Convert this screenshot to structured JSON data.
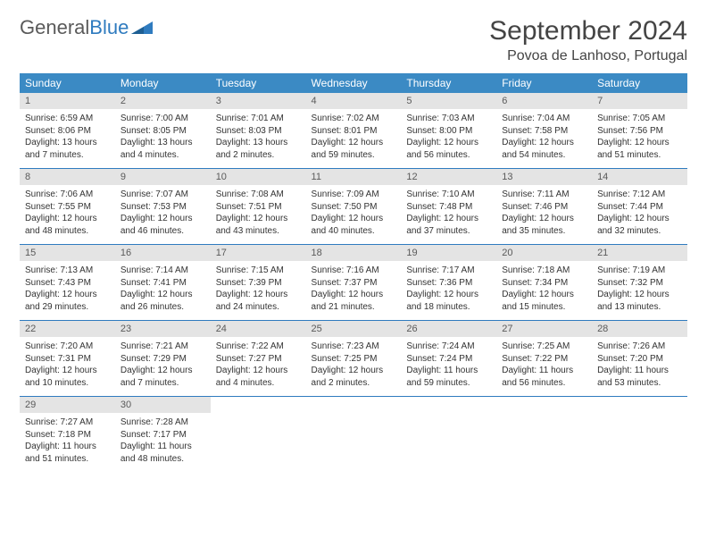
{
  "logo": {
    "text1": "General",
    "text2": "Blue"
  },
  "title": "September 2024",
  "location": "Povoa de Lanhoso, Portugal",
  "colors": {
    "header_bg": "#3b8ac4",
    "header_text": "#ffffff",
    "daynum_bg": "#e4e4e4",
    "row_border": "#2f7bbf",
    "body_text": "#333333",
    "logo_gray": "#5a5a5a",
    "logo_blue": "#2f7bbf"
  },
  "weekdays": [
    "Sunday",
    "Monday",
    "Tuesday",
    "Wednesday",
    "Thursday",
    "Friday",
    "Saturday"
  ],
  "weeks": [
    [
      {
        "n": "1",
        "sr": "6:59 AM",
        "ss": "8:06 PM",
        "dl": "13 hours and 7 minutes."
      },
      {
        "n": "2",
        "sr": "7:00 AM",
        "ss": "8:05 PM",
        "dl": "13 hours and 4 minutes."
      },
      {
        "n": "3",
        "sr": "7:01 AM",
        "ss": "8:03 PM",
        "dl": "13 hours and 2 minutes."
      },
      {
        "n": "4",
        "sr": "7:02 AM",
        "ss": "8:01 PM",
        "dl": "12 hours and 59 minutes."
      },
      {
        "n": "5",
        "sr": "7:03 AM",
        "ss": "8:00 PM",
        "dl": "12 hours and 56 minutes."
      },
      {
        "n": "6",
        "sr": "7:04 AM",
        "ss": "7:58 PM",
        "dl": "12 hours and 54 minutes."
      },
      {
        "n": "7",
        "sr": "7:05 AM",
        "ss": "7:56 PM",
        "dl": "12 hours and 51 minutes."
      }
    ],
    [
      {
        "n": "8",
        "sr": "7:06 AM",
        "ss": "7:55 PM",
        "dl": "12 hours and 48 minutes."
      },
      {
        "n": "9",
        "sr": "7:07 AM",
        "ss": "7:53 PM",
        "dl": "12 hours and 46 minutes."
      },
      {
        "n": "10",
        "sr": "7:08 AM",
        "ss": "7:51 PM",
        "dl": "12 hours and 43 minutes."
      },
      {
        "n": "11",
        "sr": "7:09 AM",
        "ss": "7:50 PM",
        "dl": "12 hours and 40 minutes."
      },
      {
        "n": "12",
        "sr": "7:10 AM",
        "ss": "7:48 PM",
        "dl": "12 hours and 37 minutes."
      },
      {
        "n": "13",
        "sr": "7:11 AM",
        "ss": "7:46 PM",
        "dl": "12 hours and 35 minutes."
      },
      {
        "n": "14",
        "sr": "7:12 AM",
        "ss": "7:44 PM",
        "dl": "12 hours and 32 minutes."
      }
    ],
    [
      {
        "n": "15",
        "sr": "7:13 AM",
        "ss": "7:43 PM",
        "dl": "12 hours and 29 minutes."
      },
      {
        "n": "16",
        "sr": "7:14 AM",
        "ss": "7:41 PM",
        "dl": "12 hours and 26 minutes."
      },
      {
        "n": "17",
        "sr": "7:15 AM",
        "ss": "7:39 PM",
        "dl": "12 hours and 24 minutes."
      },
      {
        "n": "18",
        "sr": "7:16 AM",
        "ss": "7:37 PM",
        "dl": "12 hours and 21 minutes."
      },
      {
        "n": "19",
        "sr": "7:17 AM",
        "ss": "7:36 PM",
        "dl": "12 hours and 18 minutes."
      },
      {
        "n": "20",
        "sr": "7:18 AM",
        "ss": "7:34 PM",
        "dl": "12 hours and 15 minutes."
      },
      {
        "n": "21",
        "sr": "7:19 AM",
        "ss": "7:32 PM",
        "dl": "12 hours and 13 minutes."
      }
    ],
    [
      {
        "n": "22",
        "sr": "7:20 AM",
        "ss": "7:31 PM",
        "dl": "12 hours and 10 minutes."
      },
      {
        "n": "23",
        "sr": "7:21 AM",
        "ss": "7:29 PM",
        "dl": "12 hours and 7 minutes."
      },
      {
        "n": "24",
        "sr": "7:22 AM",
        "ss": "7:27 PM",
        "dl": "12 hours and 4 minutes."
      },
      {
        "n": "25",
        "sr": "7:23 AM",
        "ss": "7:25 PM",
        "dl": "12 hours and 2 minutes."
      },
      {
        "n": "26",
        "sr": "7:24 AM",
        "ss": "7:24 PM",
        "dl": "11 hours and 59 minutes."
      },
      {
        "n": "27",
        "sr": "7:25 AM",
        "ss": "7:22 PM",
        "dl": "11 hours and 56 minutes."
      },
      {
        "n": "28",
        "sr": "7:26 AM",
        "ss": "7:20 PM",
        "dl": "11 hours and 53 minutes."
      }
    ],
    [
      {
        "n": "29",
        "sr": "7:27 AM",
        "ss": "7:18 PM",
        "dl": "11 hours and 51 minutes."
      },
      {
        "n": "30",
        "sr": "7:28 AM",
        "ss": "7:17 PM",
        "dl": "11 hours and 48 minutes."
      },
      null,
      null,
      null,
      null,
      null
    ]
  ],
  "labels": {
    "sunrise": "Sunrise: ",
    "sunset": "Sunset: ",
    "daylight": "Daylight: "
  }
}
